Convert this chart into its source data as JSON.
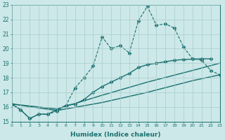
{
  "xlabel": "Humidex (Indice chaleur)",
  "bg_color": "#cce8e8",
  "grid_color": "#aacccc",
  "line_color": "#1a7070",
  "xlim": [
    0,
    23
  ],
  "ylim": [
    15,
    23
  ],
  "xticks": [
    0,
    1,
    2,
    3,
    4,
    5,
    6,
    7,
    8,
    9,
    10,
    11,
    12,
    13,
    14,
    15,
    16,
    17,
    18,
    19,
    20,
    21,
    22,
    23
  ],
  "yticks": [
    15,
    16,
    17,
    18,
    19,
    20,
    21,
    22,
    23
  ],
  "series": [
    {
      "x": [
        0,
        1,
        2,
        3,
        4,
        5,
        6,
        7,
        8,
        9,
        10,
        11,
        12,
        13,
        14,
        15,
        16,
        17,
        18,
        19,
        20,
        21,
        22,
        23
      ],
      "y": [
        16.2,
        15.8,
        15.2,
        15.5,
        15.5,
        15.7,
        16.1,
        17.3,
        18.0,
        18.8,
        20.8,
        20.0,
        20.2,
        19.7,
        21.9,
        22.9,
        21.6,
        21.7,
        21.4,
        20.1,
        19.3,
        19.2,
        18.5,
        18.2
      ],
      "style": "dashed",
      "marker": "D",
      "markersize": 2.5
    },
    {
      "x": [
        0,
        1,
        2,
        3,
        4,
        5,
        6,
        7,
        8,
        9,
        10,
        11,
        12,
        13,
        14,
        15,
        16,
        17,
        18,
        19,
        20,
        21,
        22
      ],
      "y": [
        16.2,
        15.8,
        15.2,
        15.5,
        15.5,
        15.8,
        16.1,
        16.2,
        16.5,
        17.0,
        17.4,
        17.7,
        18.0,
        18.3,
        18.7,
        18.9,
        19.0,
        19.1,
        19.2,
        19.25,
        19.28,
        19.3,
        19.3
      ],
      "style": "solid",
      "marker": "D",
      "markersize": 2.5
    },
    {
      "x": [
        0,
        5,
        10,
        15,
        20,
        23
      ],
      "y": [
        16.2,
        15.85,
        16.8,
        17.7,
        18.5,
        19.0
      ],
      "style": "solid",
      "marker": null,
      "markersize": 0
    },
    {
      "x": [
        0,
        5,
        10,
        15,
        20,
        23
      ],
      "y": [
        16.2,
        15.75,
        16.3,
        17.0,
        17.8,
        18.2
      ],
      "style": "solid",
      "marker": null,
      "markersize": 0
    }
  ]
}
